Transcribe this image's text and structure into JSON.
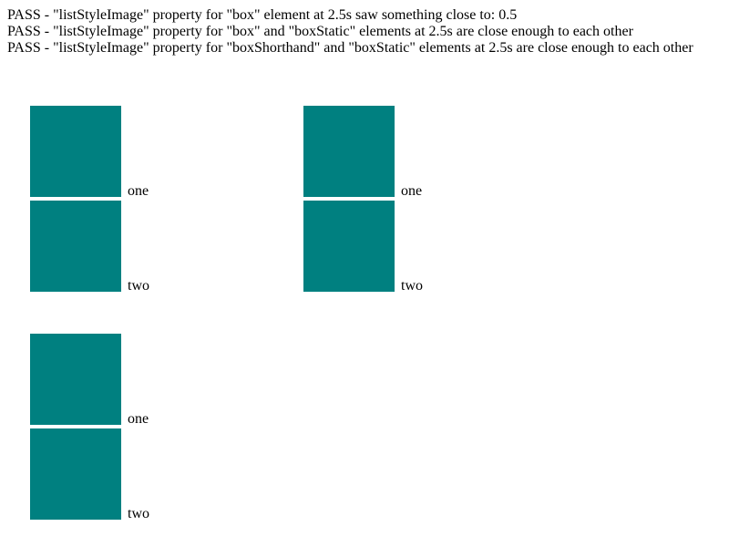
{
  "results": [
    "PASS - \"listStyleImage\" property for \"box\" element at 2.5s saw something close to: 0.5",
    "PASS - \"listStyleImage\" property for \"box\" and \"boxStatic\" elements at 2.5s are close enough to each other",
    "PASS - \"listStyleImage\" property for \"boxShorthand\" and \"boxStatic\" elements at 2.5s are close enough to each other"
  ],
  "colors": {
    "swatch": "#008080",
    "background": "#ffffff",
    "text": "#000000"
  },
  "groups": {
    "box": {
      "items": [
        {
          "label": "one"
        },
        {
          "label": "two"
        }
      ]
    },
    "box_static": {
      "items": [
        {
          "label": "one"
        },
        {
          "label": "two"
        }
      ]
    },
    "box_shorthand": {
      "items": [
        {
          "label": "one"
        },
        {
          "label": "two"
        }
      ]
    }
  }
}
